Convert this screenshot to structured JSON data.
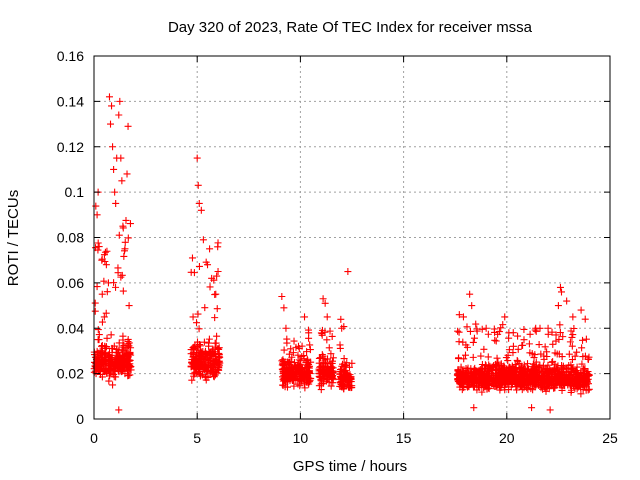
{
  "chart_data": {
    "type": "scatter",
    "title": "Day 320 of 2023, Rate Of TEC Index for receiver mssa",
    "xlabel": "GPS time / hours",
    "ylabel": "ROTI / TECUs",
    "xlim": [
      0,
      25
    ],
    "ylim": [
      0,
      0.16
    ],
    "xticks": [
      0,
      5,
      10,
      15,
      20,
      25
    ],
    "yticks": [
      0,
      0.02,
      0.04,
      0.06,
      0.08,
      0.1,
      0.12,
      0.14,
      0.16
    ],
    "xtick_labels": [
      "0",
      "5",
      "10",
      "15",
      "20",
      "25"
    ],
    "ytick_labels": [
      "0",
      "0.02",
      "0.04",
      "0.06",
      "0.08",
      "0.1",
      "0.12",
      "0.14",
      "0.16"
    ],
    "grid": true,
    "marker": "+",
    "color": "#ff0000",
    "clusters": [
      {
        "x_range": [
          0.0,
          1.8
        ],
        "y_range": [
          0.004,
          0.142
        ],
        "median": 0.025
      },
      {
        "x_range": [
          4.7,
          6.1
        ],
        "y_range": [
          0.01,
          0.115
        ],
        "median": 0.025
      },
      {
        "x_range": [
          9.1,
          10.5
        ],
        "y_range": [
          0.005,
          0.054
        ],
        "median": 0.02
      },
      {
        "x_range": [
          10.9,
          11.6
        ],
        "y_range": [
          0.01,
          0.053
        ],
        "median": 0.02
      },
      {
        "x_range": [
          11.9,
          12.5
        ],
        "y_range": [
          0.005,
          0.065
        ],
        "median": 0.018
      },
      {
        "x_range": [
          17.6,
          24.0
        ],
        "y_range": [
          0.003,
          0.058
        ],
        "median": 0.018
      }
    ],
    "points": [
      [
        0.1,
        0.02
      ],
      [
        0.15,
        0.09
      ],
      [
        0.2,
        0.1
      ],
      [
        0.2,
        0.035
      ],
      [
        0.25,
        0.076
      ],
      [
        0.3,
        0.03
      ],
      [
        0.4,
        0.055
      ],
      [
        0.5,
        0.045
      ],
      [
        0.6,
        0.068
      ],
      [
        0.7,
        0.06
      ],
      [
        0.75,
        0.142
      ],
      [
        0.8,
        0.13
      ],
      [
        0.85,
        0.138
      ],
      [
        0.9,
        0.12
      ],
      [
        0.95,
        0.11
      ],
      [
        1.0,
        0.1
      ],
      [
        1.05,
        0.095
      ],
      [
        1.1,
        0.115
      ],
      [
        1.2,
        0.134
      ],
      [
        1.25,
        0.14
      ],
      [
        1.3,
        0.115
      ],
      [
        1.35,
        0.105
      ],
      [
        1.4,
        0.085
      ],
      [
        1.5,
        0.075
      ],
      [
        1.6,
        0.108
      ],
      [
        1.65,
        0.129
      ],
      [
        1.7,
        0.05
      ],
      [
        1.2,
        0.004
      ],
      [
        0.9,
        0.015
      ],
      [
        1.5,
        0.02
      ],
      [
        5.0,
        0.115
      ],
      [
        5.05,
        0.103
      ],
      [
        5.1,
        0.095
      ],
      [
        5.2,
        0.092
      ],
      [
        5.3,
        0.079
      ],
      [
        5.5,
        0.068
      ],
      [
        5.6,
        0.075
      ],
      [
        5.7,
        0.062
      ],
      [
        5.9,
        0.055
      ],
      [
        4.8,
        0.045
      ],
      [
        9.1,
        0.054
      ],
      [
        9.2,
        0.049
      ],
      [
        9.3,
        0.04
      ],
      [
        10.2,
        0.045
      ],
      [
        10.4,
        0.038
      ],
      [
        11.1,
        0.053
      ],
      [
        11.2,
        0.051
      ],
      [
        11.3,
        0.045
      ],
      [
        12.0,
        0.04
      ],
      [
        12.3,
        0.065
      ],
      [
        17.7,
        0.046
      ],
      [
        17.9,
        0.045
      ],
      [
        18.2,
        0.055
      ],
      [
        18.3,
        0.05
      ],
      [
        19.0,
        0.04
      ],
      [
        19.9,
        0.045
      ],
      [
        20.1,
        0.038
      ],
      [
        21.4,
        0.04
      ],
      [
        22.0,
        0.04
      ],
      [
        22.5,
        0.05
      ],
      [
        22.6,
        0.058
      ],
      [
        22.65,
        0.056
      ],
      [
        22.9,
        0.052
      ],
      [
        23.2,
        0.045
      ],
      [
        23.6,
        0.048
      ],
      [
        23.8,
        0.044
      ],
      [
        21.2,
        0.005
      ],
      [
        22.1,
        0.004
      ],
      [
        18.4,
        0.005
      ]
    ]
  }
}
